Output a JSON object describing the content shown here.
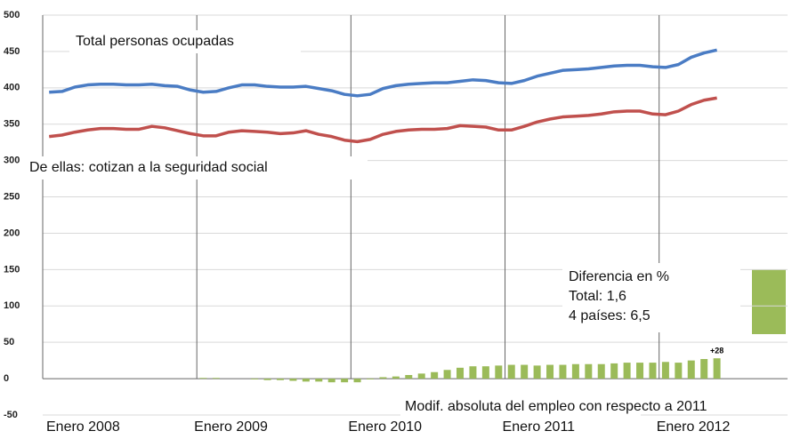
{
  "chart_data": {
    "type": "line",
    "categories": [
      "Enero 2008",
      null,
      null,
      null,
      null,
      null,
      null,
      null,
      null,
      null,
      null,
      null,
      "Enero 2009",
      null,
      null,
      null,
      null,
      null,
      null,
      null,
      null,
      null,
      null,
      null,
      "Enero 2010",
      null,
      null,
      null,
      null,
      null,
      null,
      null,
      null,
      null,
      null,
      null,
      "Enero 2011",
      null,
      null,
      null,
      null,
      null,
      null,
      null,
      null,
      null,
      null,
      null,
      "Enero 2012",
      null,
      null,
      null,
      null,
      null,
      null,
      null,
      null,
      null
    ],
    "series": [
      {
        "name": "Total personas ocupadas",
        "color": "#4a7cc4",
        "type": "line",
        "values": [
          394,
          395,
          401,
          404,
          405,
          405,
          404,
          404,
          405,
          403,
          402,
          397,
          394,
          395,
          400,
          404,
          404,
          402,
          401,
          401,
          402,
          399,
          396,
          391,
          389,
          391,
          399,
          403,
          405,
          406,
          407,
          407,
          409,
          411,
          410,
          407,
          406,
          410,
          416,
          420,
          424,
          425,
          426,
          428,
          430,
          431,
          431,
          429,
          428,
          432,
          442,
          448,
          452,
          null,
          null,
          null,
          null,
          null
        ]
      },
      {
        "name": "De ellas: cotizan a la seguridad social",
        "color": "#c0504d",
        "type": "line",
        "values": [
          333,
          335,
          339,
          342,
          344,
          344,
          343,
          343,
          347,
          345,
          341,
          337,
          334,
          334,
          339,
          341,
          340,
          339,
          337,
          338,
          341,
          336,
          333,
          328,
          326,
          329,
          336,
          340,
          342,
          343,
          343,
          344,
          348,
          347,
          346,
          342,
          342,
          347,
          353,
          357,
          360,
          361,
          362,
          364,
          367,
          368,
          368,
          364,
          363,
          368,
          377,
          383,
          386,
          null,
          null,
          null,
          null,
          null
        ]
      },
      {
        "name": "Modif. absoluta del empleo con respecto a 2011",
        "color": "#9bbb59",
        "type": "bar",
        "values": [
          null,
          null,
          null,
          null,
          null,
          null,
          null,
          null,
          null,
          null,
          null,
          null,
          1,
          1,
          null,
          null,
          -1,
          -2,
          -2,
          -3,
          -4,
          -4,
          -5,
          -5,
          -5,
          -1,
          2,
          3,
          5,
          7,
          9,
          12,
          15,
          17,
          17,
          18,
          19,
          19,
          18,
          19,
          19,
          20,
          20,
          20,
          21,
          22,
          22,
          22,
          23,
          22,
          25,
          27,
          28,
          null,
          null,
          null,
          null,
          null
        ],
        "value_labels": [
          null,
          null,
          null,
          null,
          null,
          null,
          null,
          null,
          null,
          null,
          null,
          null,
          null,
          null,
          null,
          null,
          null,
          null,
          null,
          null,
          null,
          null,
          null,
          null,
          null,
          null,
          null,
          null,
          null,
          null,
          null,
          null,
          null,
          null,
          null,
          null,
          null,
          null,
          null,
          null,
          null,
          null,
          null,
          null,
          null,
          null,
          null,
          null,
          null,
          null,
          null,
          null,
          "+28",
          null,
          null,
          null,
          null,
          null
        ]
      }
    ],
    "annotations": [
      "Diferencia en %",
      "Total: 1,6",
      "4 países: 6,5"
    ],
    "ylim": [
      -50,
      500
    ],
    "yticks": [
      -50,
      0,
      50,
      100,
      150,
      200,
      250,
      300,
      350,
      400,
      450,
      500
    ],
    "grid": true
  }
}
